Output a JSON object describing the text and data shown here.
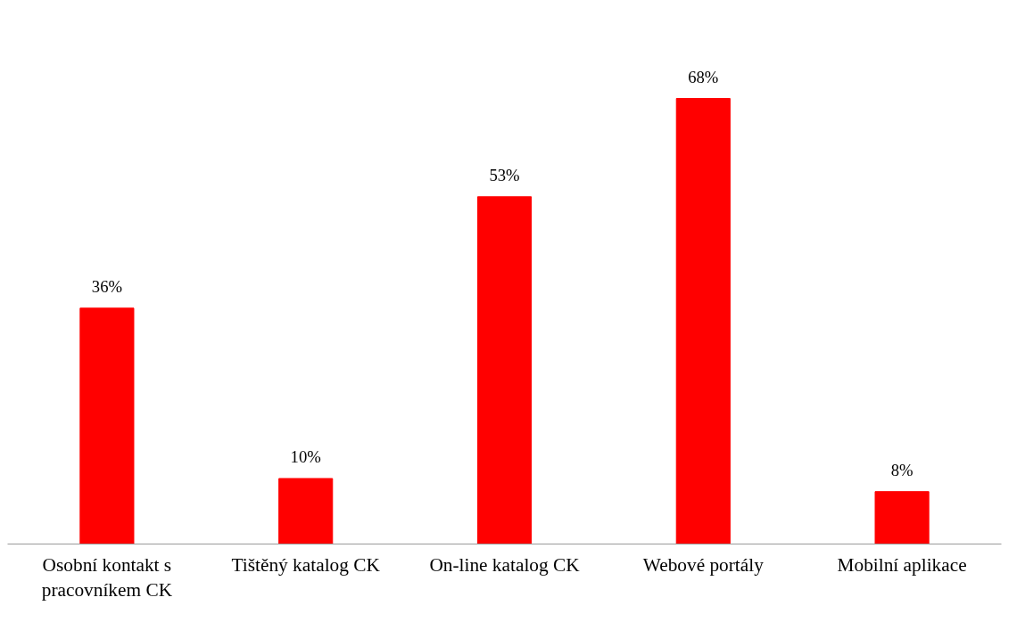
{
  "chart_data": {
    "type": "bar",
    "categories": [
      "Osobní kontakt s\npracovníkem CK",
      "Tištěný katalog CK",
      "On-line katalog CK",
      "Webové portály",
      "Mobilní aplikace"
    ],
    "values": [
      36,
      10,
      53,
      68,
      8
    ],
    "value_labels": [
      "36%",
      "10%",
      "53%",
      "68%",
      "8%"
    ],
    "color": "#ff0000"
  }
}
